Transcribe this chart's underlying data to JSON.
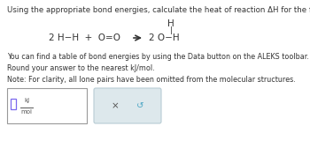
{
  "title_text": "Using the appropriate bond energies, calculate the heat of reaction ΔH for the following reaction:",
  "h_above": "H",
  "h_line": "|",
  "reactants": "2 H−H  +  O=O",
  "arrow": "⟶",
  "product": "2 O−H",
  "body_lines": [
    "You can find a table of bond energies by using the Data button on the ALEKS toolbar.",
    "Round your answer to the nearest kJ/mol.",
    "Note: For clarity, all lone pairs have been omitted from the molecular structures."
  ],
  "input_frac_num": "kJ",
  "input_frac_den": "mol",
  "btn_x_char": "×",
  "btn_reset_char": "↺",
  "bg_color": "#ffffff",
  "text_color": "#333333",
  "input_border_color": "#999999",
  "btn_border_color": "#b8ccd4",
  "btn_bg_color": "#dde8ec",
  "cursor_color": "#7b68ee",
  "frac_color": "#555555",
  "title_fontsize": 6.2,
  "body_fontsize": 5.8,
  "reaction_fontsize": 7.5,
  "btn_fontsize": 7.5
}
